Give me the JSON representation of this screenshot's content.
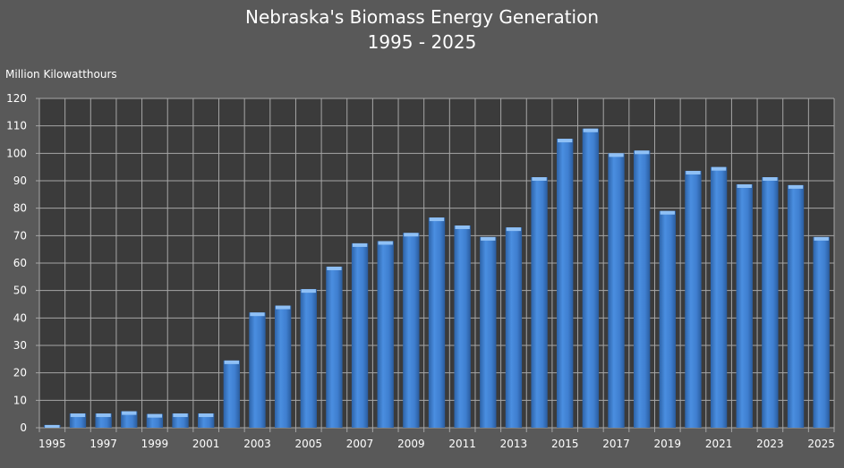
{
  "chart_data": {
    "type": "bar",
    "title": "Nebraska's Biomass Energy Generation",
    "subtitle": "1995 - 2025",
    "ylabel": "Million Kilowatthours",
    "xlabel": "",
    "ylim": [
      0,
      120
    ],
    "yticks": [
      0,
      10,
      20,
      30,
      40,
      50,
      60,
      70,
      80,
      90,
      100,
      110,
      120
    ],
    "grid": true,
    "legend": "none",
    "bar_color": "#3f7fd0",
    "categories": [
      "1995",
      "1996",
      "1997",
      "1998",
      "1999",
      "2000",
      "2001",
      "2002",
      "2003",
      "2004",
      "2005",
      "2006",
      "2007",
      "2008",
      "2009",
      "2010",
      "2011",
      "2012",
      "2013",
      "2014",
      "2015",
      "2016",
      "2017",
      "2018",
      "2019",
      "2020",
      "2021",
      "2022",
      "2023",
      "2024",
      "2025"
    ],
    "tick_labels": [
      "1995",
      "1997",
      "1999",
      "2001",
      "2003",
      "2005",
      "2007",
      "2009",
      "2011",
      "2013",
      "2015",
      "2017",
      "2019",
      "2021",
      "2023",
      "2025"
    ],
    "values": [
      1,
      5.2,
      5.2,
      6,
      5,
      5.2,
      5.2,
      24.5,
      42,
      44.5,
      50.5,
      58.7,
      67.2,
      68,
      71,
      76.6,
      73.7,
      69.5,
      73,
      91.3,
      105.3,
      109,
      100,
      101,
      79,
      93.6,
      95,
      88.7,
      91.3,
      88.4,
      69.5
    ]
  }
}
